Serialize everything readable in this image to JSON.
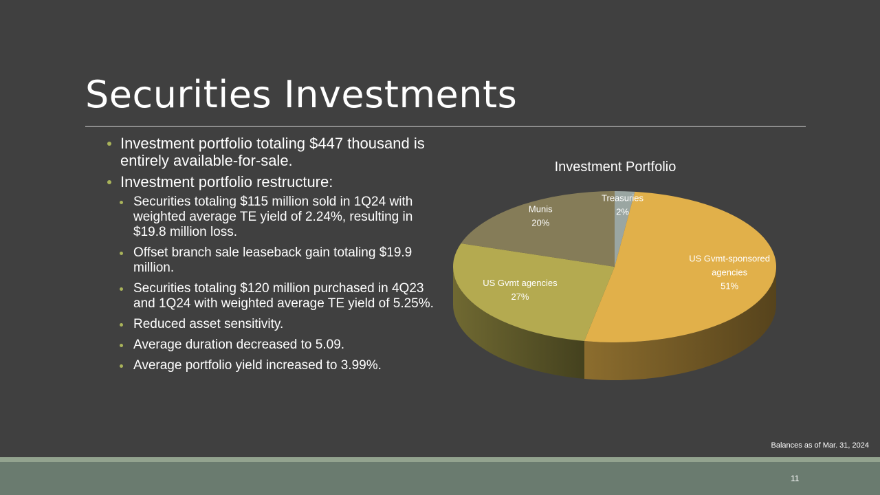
{
  "slide": {
    "title": "Securities Investments",
    "bullets": [
      {
        "level": 1,
        "text": "Investment portfolio totaling $447 thousand is entirely available-for-sale."
      },
      {
        "level": 1,
        "text": "Investment portfolio restructure:"
      },
      {
        "level": 2,
        "text": "Securities totaling $115 million sold in 1Q24 with weighted average TE yield of 2.24%, resulting in $19.8 million loss."
      },
      {
        "level": 2,
        "text": "Offset branch sale leaseback gain totaling $19.9 million."
      },
      {
        "level": 2,
        "text": "Securities totaling $120 million purchased in 4Q23 and 1Q24 with weighted average TE yield of 5.25%."
      },
      {
        "level": 2,
        "text": "Reduced asset sensitivity."
      },
      {
        "level": 2,
        "text": "Average duration decreased to 5.09."
      },
      {
        "level": 2,
        "text": "Average portfolio yield increased to 3.99%."
      }
    ],
    "footnote": "Balances as of Mar. 31, 2024",
    "page_number": "11"
  },
  "chart_data": {
    "type": "pie",
    "title": "Investment Portfolio",
    "style": "3d",
    "slices": [
      {
        "label": "Treasuries",
        "label_lines": [
          "Treasuries"
        ],
        "value": 2,
        "value_label": "2%",
        "color": "#9aa6a2"
      },
      {
        "label": "US Gvmt-sponsored agencies",
        "label_lines": [
          "US Gvmt-sponsored",
          "agencies"
        ],
        "value": 51,
        "value_label": "51%",
        "color": "#e1b04a"
      },
      {
        "label": "US Gvmt agencies",
        "label_lines": [
          "US Gvmt agencies"
        ],
        "value": 27,
        "value_label": "27%",
        "color": "#b4aa50"
      },
      {
        "label": "Munis",
        "label_lines": [
          "Munis"
        ],
        "value": 20,
        "value_label": "20%",
        "color": "#857c58"
      }
    ]
  }
}
